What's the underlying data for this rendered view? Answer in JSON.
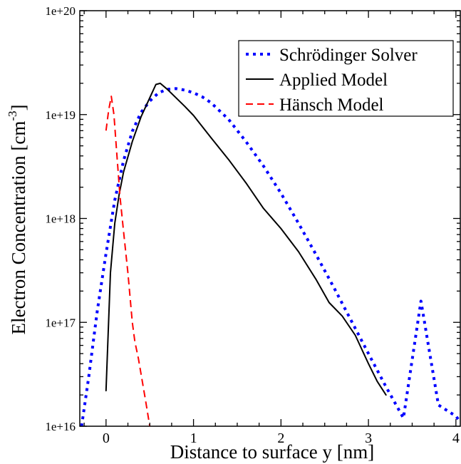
{
  "chart_data": {
    "type": "line",
    "title": "",
    "xlabel": "Distance to surface y [nm]",
    "ylabel": "Electron Concentration [cm",
    "ylabel_sup": "-3",
    "ylabel_close": "]",
    "xlim": [
      -0.3,
      4.05
    ],
    "ylim": [
      1e+16,
      1e+20
    ],
    "yscale": "log",
    "grid": false,
    "legend_position": "top-right",
    "x_ticks": [
      "0",
      "1",
      "2",
      "3",
      "4"
    ],
    "x_tick_values": [
      0,
      1,
      2,
      3,
      4
    ],
    "y_ticks": [
      "1e+16",
      "1e+17",
      "1e+18",
      "1e+19",
      "1e+20"
    ],
    "y_tick_values": [
      1e+16,
      1e+17,
      1e+18,
      1e+19,
      1e+20
    ],
    "series": [
      {
        "name": "Schrödinger Solver",
        "color": "#0000ff",
        "style": "dotted",
        "x": [
          -0.28,
          -0.2,
          -0.1,
          0.0,
          0.1,
          0.2,
          0.3,
          0.4,
          0.5,
          0.6,
          0.7,
          0.8,
          0.9,
          1.0,
          1.1,
          1.2,
          1.4,
          1.6,
          1.8,
          2.0,
          2.2,
          2.4,
          2.6,
          2.8,
          3.0,
          3.2,
          3.4,
          3.6,
          3.8,
          4.0,
          4.05
        ],
        "y": [
          1e+16,
          2.9e+16,
          1.3e+17,
          4.6e+17,
          1.5e+18,
          3.6e+18,
          6.9e+18,
          1.05e+19,
          1.35e+19,
          1.62e+19,
          1.75e+19,
          1.78e+19,
          1.72e+19,
          1.62e+19,
          1.48e+19,
          1.3e+19,
          9e+18,
          5.5e+18,
          3.2e+18,
          1.75e+18,
          9e+17,
          4.5e+17,
          2.2e+17,
          1.05e+17,
          5e+16,
          2.4e+16,
          1.2e+16,
          1.6e+17,
          1.6e+16,
          1.25e+16,
          1.1e+16
        ]
      },
      {
        "name": "Applied Model",
        "color": "#000000",
        "style": "solid",
        "x": [
          0.0,
          0.05,
          0.1,
          0.15,
          0.2,
          0.3,
          0.4,
          0.5,
          0.57,
          0.62,
          0.7,
          0.8,
          0.9,
          1.0,
          1.2,
          1.4,
          1.6,
          1.8,
          2.0,
          2.2,
          2.4,
          2.55,
          2.7,
          2.85,
          3.0,
          3.1,
          3.2
        ],
        "y": [
          2.2e+16,
          3e+17,
          9e+17,
          1.7e+18,
          2.8e+18,
          5.5e+18,
          9.5e+18,
          1.45e+19,
          1.95e+19,
          2e+19,
          1.75e+19,
          1.45e+19,
          1.2e+19,
          9.8e+18,
          6e+18,
          3.7e+18,
          2.2e+18,
          1.25e+18,
          8e+17,
          4.8e+17,
          2.6e+17,
          1.55e+17,
          1.15e+17,
          7.5e+16,
          4e+16,
          2.7e+16,
          2e+16
        ]
      },
      {
        "name": "Hänsch Model",
        "color": "#ff0000",
        "style": "dashed",
        "x": [
          0.0,
          0.03,
          0.06,
          0.09,
          0.12,
          0.16,
          0.2,
          0.25,
          0.3,
          0.33,
          0.37,
          0.4,
          0.45,
          0.5
        ],
        "y": [
          7e+18,
          1.1e+19,
          1.5e+19,
          1e+19,
          4.5e+18,
          1.6e+18,
          7.5e+17,
          3e+17,
          1e+17,
          6.5e+16,
          4.5e+16,
          3.2e+16,
          1.8e+16,
          1e+16
        ]
      }
    ]
  }
}
